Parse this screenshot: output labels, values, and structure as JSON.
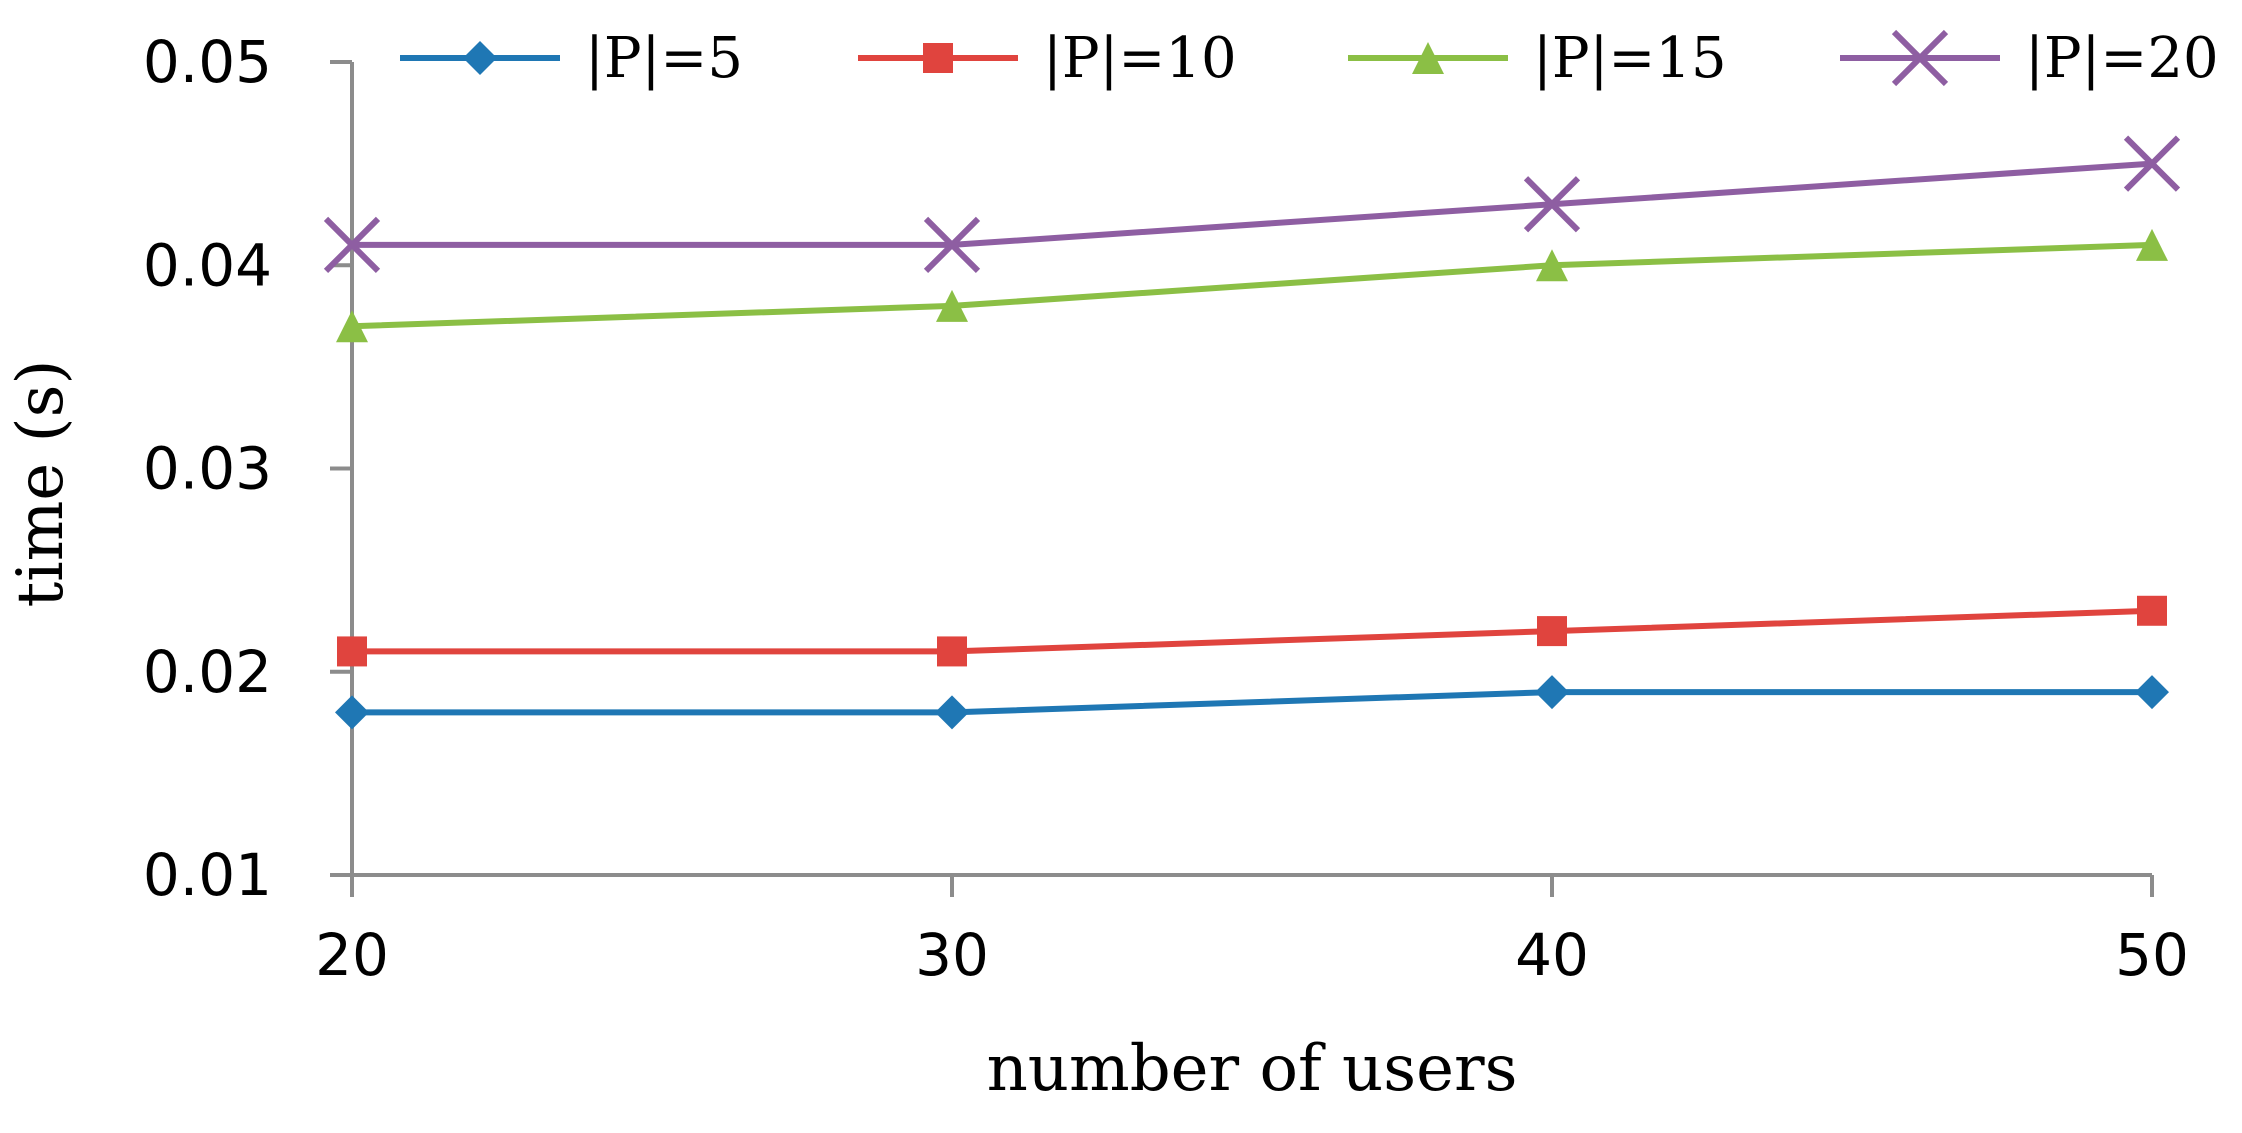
{
  "chart_data": {
    "type": "line",
    "title": "",
    "xlabel": "number of users",
    "ylabel": "time (s)",
    "x": [
      20,
      30,
      40,
      50
    ],
    "x_tick_labels": [
      "20",
      "30",
      "40",
      "50"
    ],
    "ylim": [
      0.01,
      0.05
    ],
    "y_tick_labels": [
      "0.01",
      "0.02",
      "0.03",
      "0.04",
      "0.05"
    ],
    "y_ticks": [
      0.01,
      0.02,
      0.03,
      0.04,
      0.05
    ],
    "grid": false,
    "legend_position": "top",
    "series": [
      {
        "name": "|P|=5",
        "values": [
          0.018,
          0.018,
          0.019,
          0.019
        ],
        "color": "#1f77b4",
        "marker": "diamond"
      },
      {
        "name": "|P|=10",
        "values": [
          0.021,
          0.021,
          0.022,
          0.023
        ],
        "color": "#e0443e",
        "marker": "square"
      },
      {
        "name": "|P|=15",
        "values": [
          0.037,
          0.038,
          0.04,
          0.041
        ],
        "color": "#8bbf45",
        "marker": "triangle"
      },
      {
        "name": "|P|=20",
        "values": [
          0.041,
          0.041,
          0.043,
          0.045
        ],
        "color": "#8e5ea2",
        "marker": "x"
      }
    ]
  }
}
